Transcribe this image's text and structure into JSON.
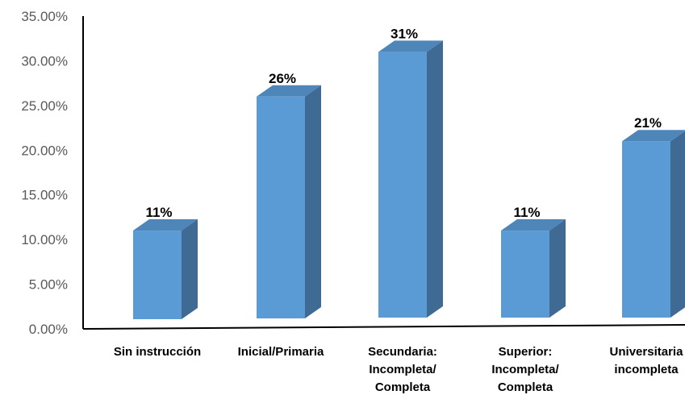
{
  "chart_data": {
    "type": "bar",
    "style": "3d-column",
    "title": "",
    "xlabel": "",
    "ylabel": "",
    "categories": [
      [
        "Sin instrucción"
      ],
      [
        "Inicial/Primaria"
      ],
      [
        "Secundaria:",
        "Incompleta/",
        "Completa"
      ],
      [
        "Superior:",
        "Incompleta/",
        "Completa"
      ],
      [
        "Universitaria",
        "incompleta"
      ]
    ],
    "values": [
      11,
      26,
      31,
      11,
      21
    ],
    "data_labels": [
      "11%",
      "26%",
      "31%",
      "11%",
      "21%"
    ],
    "ylim": [
      0,
      35
    ],
    "yticks": [
      "0.00%",
      "5.00%",
      "10.00%",
      "15.00%",
      "20.00%",
      "25.00%",
      "30.00%",
      "35.00%"
    ],
    "grid": false,
    "legend": "none",
    "colors": {
      "front": "#5b9bd5",
      "side": "#3e6a93",
      "top": "#4f86ba"
    }
  }
}
